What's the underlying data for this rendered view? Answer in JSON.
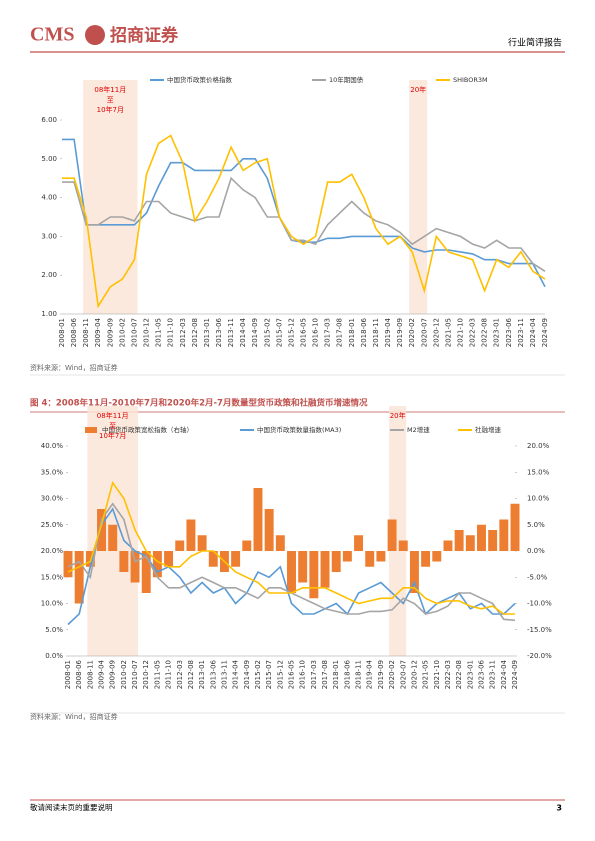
{
  "header": {
    "logo": "CMS",
    "brand": "招商证券",
    "report_type": "行业简评报告"
  },
  "chart_data": [
    {
      "type": "line",
      "categories": [
        "2008-01",
        "2008-06",
        "2008-11",
        "2009-04",
        "2009-09",
        "2010-02",
        "2010-07",
        "2010-12",
        "2011-05",
        "2011-10",
        "2012-03",
        "2012-08",
        "2013-01",
        "2013-06",
        "2013-11",
        "2014-04",
        "2014-09",
        "2015-02",
        "2015-07",
        "2015-12",
        "2016-05",
        "2016-10",
        "2017-03",
        "2017-08",
        "2018-01",
        "2018-06",
        "2018-11",
        "2019-04",
        "2019-09",
        "2020-02",
        "2020-07",
        "2020-12",
        "2021-05",
        "2021-10",
        "2022-03",
        "2022-08",
        "2023-01",
        "2023-06",
        "2023-11",
        "2024-04",
        "2024-09"
      ],
      "series": [
        {
          "name": "中国货币政策价格指数",
          "color": "#5b9bd5",
          "values": [
            5.5,
            5.5,
            3.3,
            3.3,
            3.3,
            3.3,
            3.3,
            3.6,
            4.3,
            4.9,
            4.9,
            4.7,
            4.7,
            4.7,
            4.7,
            5.0,
            5.0,
            4.5,
            3.5,
            2.9,
            2.85,
            2.85,
            2.95,
            2.95,
            3.0,
            3.0,
            3.0,
            3.0,
            3.0,
            2.7,
            2.6,
            2.65,
            2.65,
            2.6,
            2.55,
            2.4,
            2.4,
            2.3,
            2.3,
            2.3,
            1.7
          ]
        },
        {
          "name": "10年期国债",
          "color": "#a5a5a5",
          "values": [
            4.4,
            4.4,
            3.3,
            3.3,
            3.5,
            3.5,
            3.4,
            3.9,
            3.9,
            3.6,
            3.5,
            3.4,
            3.5,
            3.5,
            4.5,
            4.2,
            4.0,
            3.5,
            3.5,
            2.9,
            2.9,
            2.8,
            3.3,
            3.6,
            3.9,
            3.6,
            3.4,
            3.3,
            3.1,
            2.8,
            3.0,
            3.2,
            3.1,
            3.0,
            2.8,
            2.7,
            2.9,
            2.7,
            2.7,
            2.3,
            2.1
          ]
        },
        {
          "name": "SHIBOR3M",
          "color": "#ffc000",
          "values": [
            4.5,
            4.5,
            3.5,
            1.2,
            1.7,
            1.9,
            2.4,
            4.6,
            5.4,
            5.6,
            4.9,
            3.4,
            3.9,
            4.5,
            5.3,
            4.7,
            4.9,
            5.0,
            3.5,
            3.0,
            2.8,
            3.0,
            4.4,
            4.4,
            4.6,
            4.0,
            3.2,
            2.8,
            3.0,
            2.6,
            1.6,
            3.0,
            2.6,
            2.5,
            2.4,
            1.6,
            2.4,
            2.2,
            2.6,
            2.1,
            1.9
          ]
        }
      ],
      "ylim": [
        1,
        6
      ],
      "yticks": [
        {
          "value": 1,
          "label": "1.00"
        },
        {
          "value": 2,
          "label": "2.00"
        },
        {
          "value": 3,
          "label": "3.00"
        },
        {
          "value": 4,
          "label": "4.00"
        },
        {
          "value": 5,
          "label": "5.00"
        },
        {
          "value": 6,
          "label": "6.00"
        }
      ],
      "annotations": [
        "08年11月",
        "至",
        "10年7月",
        "20年"
      ],
      "source": "资料来源：Wind，招商证券"
    },
    {
      "type": "combo",
      "title": "图 4：2008年11月-2010年7月和2020年2月-7月数量型货币政策和社融货币增速情况",
      "categories": [
        "2008-01",
        "2008-06",
        "2008-11",
        "2009-04",
        "2009-09",
        "2010-02",
        "2010-07",
        "2010-12",
        "2011-05",
        "2011-10",
        "2012-03",
        "2012-08",
        "2013-01",
        "2013-06",
        "2013-11",
        "2014-04",
        "2014-09",
        "2015-02",
        "2015-07",
        "2015-12",
        "2016-05",
        "2016-10",
        "2017-03",
        "2017-08",
        "2018-01",
        "2018-06",
        "2018-11",
        "2019-04",
        "2019-09",
        "2020-02",
        "2020-07",
        "2020-12",
        "2021-05",
        "2021-10",
        "2022-03",
        "2022-08",
        "2023-01",
        "2023-06",
        "2023-11",
        "2024-04",
        "2024-09"
      ],
      "series": [
        {
          "name": "中国货币政策宽松指数（右轴）",
          "color": "#ed7d31",
          "axis": "y2",
          "kind": "bar",
          "values": [
            -5,
            -10,
            -3,
            8,
            5,
            -4,
            -6,
            -8,
            -5,
            -3,
            2,
            6,
            3,
            -3,
            -4,
            -3,
            2,
            12,
            8,
            3,
            -8,
            -6,
            -9,
            -7,
            -4,
            -2,
            3,
            -3,
            -2,
            6,
            2,
            -8,
            -3,
            -2,
            2,
            4,
            3,
            5,
            4,
            6,
            9
          ]
        },
        {
          "name": "中国货币政策数量指数(MA3)",
          "color": "#5b9bd5",
          "kind": "line",
          "values": [
            6,
            8,
            17,
            25,
            28,
            22,
            20,
            19,
            16,
            17,
            15,
            12,
            14,
            12,
            13,
            10,
            12,
            16,
            15,
            17,
            10,
            8,
            8,
            9,
            10,
            8,
            12,
            13,
            14,
            12,
            10,
            14,
            8,
            10,
            11,
            12,
            9,
            10,
            8,
            8,
            10
          ]
        },
        {
          "name": "M2增速",
          "color": "#a5a5a5",
          "kind": "line",
          "values": [
            17,
            18,
            15,
            26,
            29,
            26,
            18,
            19,
            15,
            13,
            13,
            14,
            15,
            14,
            13,
            13,
            12,
            11,
            13,
            13,
            12,
            11,
            10,
            9,
            8.5,
            8,
            8,
            8.5,
            8.5,
            8.8,
            11,
            10,
            8,
            8.5,
            9.5,
            12,
            12,
            11,
            10,
            7,
            6.8
          ]
        },
        {
          "name": "社融增速",
          "color": "#ffc000",
          "kind": "line",
          "values": [
            16,
            17,
            18,
            25,
            33,
            30,
            24,
            20,
            18,
            17,
            17,
            19,
            20,
            20,
            18,
            16,
            15,
            14,
            12,
            12,
            12,
            13,
            13,
            13,
            12,
            11,
            10,
            10.5,
            11,
            11,
            13,
            13,
            11,
            10,
            10.5,
            10.5,
            9.5,
            9,
            9.5,
            8,
            8
          ]
        }
      ],
      "ylim": [
        0,
        40
      ],
      "yticks": [
        {
          "value": 0,
          "label": "0.0%"
        },
        {
          "value": 5,
          "label": "5.0%"
        },
        {
          "value": 10,
          "label": "10.0%"
        },
        {
          "value": 15,
          "label": "15.0%"
        },
        {
          "value": 20,
          "label": "20.0%"
        },
        {
          "value": 25,
          "label": "25.0%"
        },
        {
          "value": 30,
          "label": "30.0%"
        },
        {
          "value": 35,
          "label": "35.0%"
        },
        {
          "value": 40,
          "label": "40.0%"
        }
      ],
      "y2lim": [
        -20,
        20
      ],
      "y2ticks": [
        {
          "value": -20,
          "label": "-20.0%"
        },
        {
          "value": -15,
          "label": "-15.0%"
        },
        {
          "value": -10,
          "label": "-10.0%"
        },
        {
          "value": -5,
          "label": "-5.0%"
        },
        {
          "value": 0,
          "label": "0.0%"
        },
        {
          "value": 5,
          "label": "5.0%"
        },
        {
          "value": 10,
          "label": "10.0%"
        },
        {
          "value": 15,
          "label": "15.0%"
        },
        {
          "value": 20,
          "label": "20.0%"
        }
      ],
      "annotations": [
        "08年11月",
        "至",
        "10年7月",
        "20年"
      ],
      "source": "资料来源：Wind，招商证券"
    }
  ],
  "footer": {
    "note": "敬请阅读末页的重要说明",
    "page": "3"
  }
}
